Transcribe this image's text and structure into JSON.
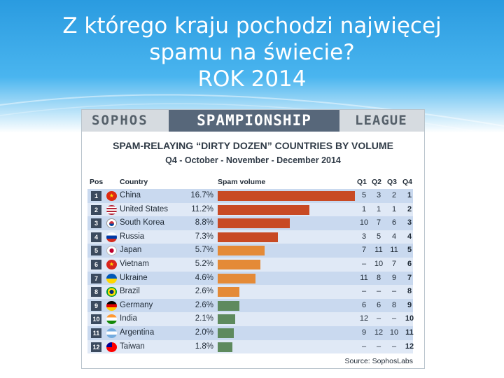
{
  "slide": {
    "title_line1": "Z którego kraju pochodzi najwięcej",
    "title_line2": "spamu na świecie?",
    "title_line3": "ROK 2014"
  },
  "banner": {
    "left": "SOPHOS",
    "middle": "SPAMPIONSHIP",
    "right": "LEAGUE"
  },
  "chart_data": {
    "type": "bar",
    "orientation": "horizontal",
    "title": "SPAM-RELAYING “DIRTY DOZEN” COUNTRIES BY VOLUME",
    "subtitle": "Q4 - October - November - December 2014",
    "headers": {
      "pos": "Pos",
      "country": "Country",
      "volume": "Spam volume",
      "q1": "Q1",
      "q2": "Q2",
      "q3": "Q3",
      "q4": "Q4"
    },
    "xlim": [
      0,
      16.7
    ],
    "grid": false,
    "legend": "none",
    "source": "Source: SophosLabs",
    "rows": [
      {
        "pos": "1",
        "country": "China",
        "pct_label": "16.7%",
        "value": 16.7,
        "q1": "5",
        "q2": "3",
        "q3": "2",
        "q4": "1",
        "flag": "china-flag",
        "color": "#c84a24"
      },
      {
        "pos": "2",
        "country": "United States",
        "pct_label": "11.2%",
        "value": 11.2,
        "q1": "1",
        "q2": "1",
        "q3": "1",
        "q4": "2",
        "flag": "usa-flag",
        "color": "#c84a24"
      },
      {
        "pos": "3",
        "country": "South Korea",
        "pct_label": "8.8%",
        "value": 8.8,
        "q1": "10",
        "q2": "7",
        "q3": "6",
        "q4": "3",
        "flag": "south-korea-flag",
        "color": "#c84a24"
      },
      {
        "pos": "4",
        "country": "Russia",
        "pct_label": "7.3%",
        "value": 7.3,
        "q1": "3",
        "q2": "5",
        "q3": "4",
        "q4": "4",
        "flag": "russia-flag",
        "color": "#c84a24"
      },
      {
        "pos": "5",
        "country": "Japan",
        "pct_label": "5.7%",
        "value": 5.7,
        "q1": "7",
        "q2": "11",
        "q3": "11",
        "q4": "5",
        "flag": "japan-flag",
        "color": "#e48a37"
      },
      {
        "pos": "6",
        "country": "Vietnam",
        "pct_label": "5.2%",
        "value": 5.2,
        "q1": "–",
        "q2": "10",
        "q3": "7",
        "q4": "6",
        "flag": "vietnam-flag",
        "color": "#e48a37"
      },
      {
        "pos": "7",
        "country": "Ukraine",
        "pct_label": "4.6%",
        "value": 4.6,
        "q1": "11",
        "q2": "8",
        "q3": "9",
        "q4": "7",
        "flag": "ukraine-flag",
        "color": "#e48a37"
      },
      {
        "pos": "8",
        "country": "Brazil",
        "pct_label": "2.6%",
        "value": 2.6,
        "q1": "–",
        "q2": "–",
        "q3": "–",
        "q4": "8",
        "flag": "brazil-flag",
        "color": "#e48a37"
      },
      {
        "pos": "9",
        "country": "Germany",
        "pct_label": "2.6%",
        "value": 2.6,
        "q1": "6",
        "q2": "6",
        "q3": "8",
        "q4": "9",
        "flag": "germany-flag",
        "color": "#5e8a5e"
      },
      {
        "pos": "10",
        "country": "India",
        "pct_label": "2.1%",
        "value": 2.1,
        "q1": "12",
        "q2": "–",
        "q3": "–",
        "q4": "10",
        "flag": "india-flag",
        "color": "#5e8a5e"
      },
      {
        "pos": "11",
        "country": "Argentina",
        "pct_label": "2.0%",
        "value": 2.0,
        "q1": "9",
        "q2": "12",
        "q3": "10",
        "q4": "11",
        "flag": "argentina-flag",
        "color": "#5e8a5e"
      },
      {
        "pos": "12",
        "country": "Taiwan",
        "pct_label": "1.8%",
        "value": 1.8,
        "q1": "–",
        "q2": "–",
        "q3": "–",
        "q4": "12",
        "flag": "taiwan-flag",
        "color": "#5e8a5e"
      }
    ]
  }
}
